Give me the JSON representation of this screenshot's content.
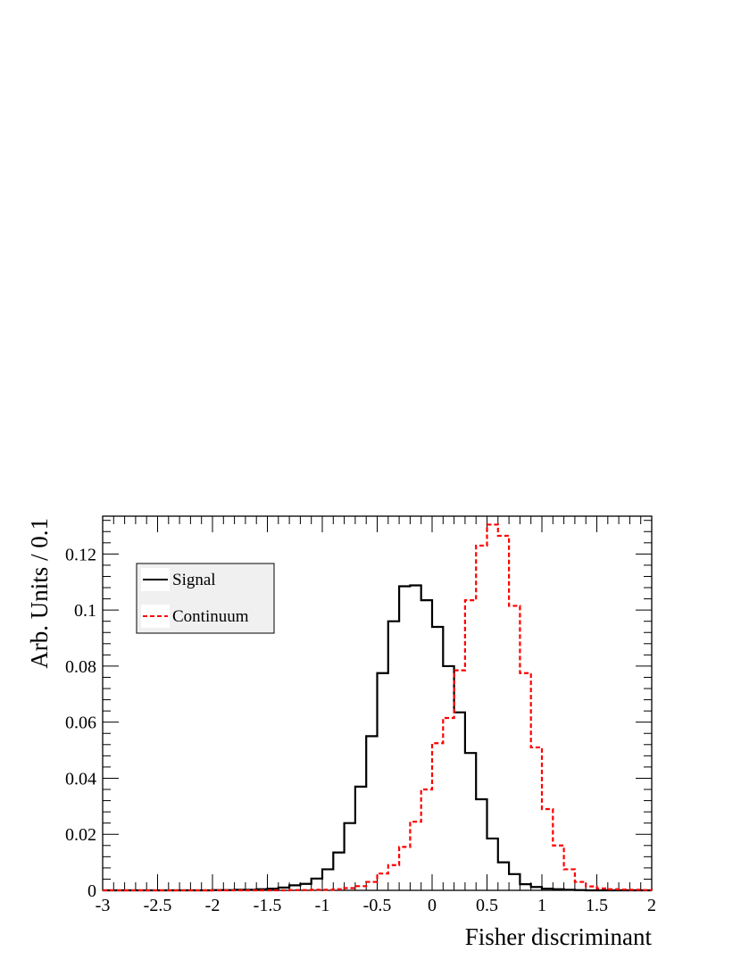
{
  "chart_data": {
    "type": "histogram",
    "xlabel": "Fisher discriminant",
    "ylabel": "Arb. Units / 0.1",
    "xlim": [
      -3,
      2
    ],
    "ylim": [
      0,
      0.1335
    ],
    "bin_width": 0.1,
    "x_ticks": [
      "-3",
      "-2.5",
      "-2",
      "-1.5",
      "-1",
      "-0.5",
      "0",
      "0.5",
      "1",
      "1.5",
      "2"
    ],
    "y_ticks": [
      "0",
      "0.02",
      "0.04",
      "0.06",
      "0.08",
      "0.1",
      "0.12"
    ],
    "legend": {
      "position": "top-left",
      "entries": [
        "Signal",
        "Continuum"
      ]
    },
    "series": [
      {
        "name": "Signal",
        "color": "#000000",
        "style": "solid",
        "bin_edges_start": -2.0,
        "values": [
          0.0001,
          0.0001,
          0.0002,
          0.0002,
          0.0004,
          0.0006,
          0.001,
          0.0018,
          0.0023,
          0.0042,
          0.0075,
          0.0135,
          0.024,
          0.037,
          0.055,
          0.0775,
          0.096,
          0.1085,
          0.1088,
          0.1035,
          0.094,
          0.08,
          0.0635,
          0.049,
          0.0325,
          0.0185,
          0.01,
          0.0058,
          0.0022,
          0.0012,
          0.0006,
          0.0004,
          0.0002,
          0.0001
        ]
      },
      {
        "name": "Continuum",
        "color": "#ff0000",
        "style": "dashed",
        "bin_edges_start": -1.3,
        "values": [
          0.0001,
          0.0001,
          0.0002,
          0.0002,
          0.0004,
          0.0008,
          0.0015,
          0.003,
          0.006,
          0.009,
          0.0155,
          0.0245,
          0.036,
          0.0525,
          0.0615,
          0.0785,
          0.1035,
          0.123,
          0.1305,
          0.1265,
          0.1015,
          0.0775,
          0.051,
          0.029,
          0.016,
          0.0075,
          0.003,
          0.0014,
          0.0007,
          0.0004,
          0.0003,
          0.0002,
          0.0001
        ]
      }
    ]
  }
}
